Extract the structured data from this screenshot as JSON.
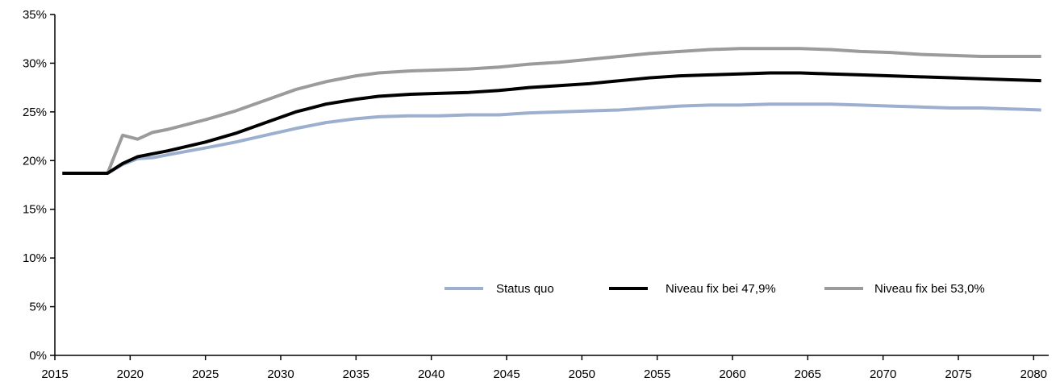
{
  "chart_data": {
    "type": "line",
    "title": "",
    "xlabel": "",
    "ylabel": "",
    "xlim": [
      2015,
      2081
    ],
    "ylim": [
      0,
      0.35
    ],
    "x_ticks": [
      2015,
      2020,
      2025,
      2030,
      2035,
      2040,
      2045,
      2050,
      2055,
      2060,
      2065,
      2070,
      2075,
      2080
    ],
    "x_tick_labels": [
      "2015",
      "2020",
      "2025",
      "2030",
      "2035",
      "2040",
      "2045",
      "2050",
      "2055",
      "2060",
      "2065",
      "2070",
      "2075",
      "2080"
    ],
    "y_ticks": [
      0,
      0.05,
      0.1,
      0.15,
      0.2,
      0.25,
      0.3,
      0.35
    ],
    "y_tick_labels": [
      "0%",
      "5%",
      "10%",
      "15%",
      "20%",
      "25%",
      "30%",
      "35%"
    ],
    "grid": false,
    "legend_position": "lower-right",
    "series": [
      {
        "name": "Status quo",
        "color": "#9DAFCF",
        "x": [
          2015.5,
          2018.5,
          2019.5,
          2020.5,
          2021.5,
          2022.5,
          2025,
          2027,
          2029,
          2031,
          2033,
          2035,
          2036.5,
          2038.5,
          2040.5,
          2042.5,
          2044.5,
          2046.5,
          2048.5,
          2050.5,
          2052.5,
          2054.5,
          2056.5,
          2058.5,
          2060.5,
          2062.5,
          2064.5,
          2066.5,
          2068.5,
          2070.5,
          2072.5,
          2074.5,
          2076.5,
          2078.5,
          2080.5
        ],
        "values": [
          0.187,
          0.187,
          0.196,
          0.202,
          0.203,
          0.206,
          0.213,
          0.219,
          0.226,
          0.233,
          0.239,
          0.243,
          0.245,
          0.246,
          0.246,
          0.247,
          0.247,
          0.249,
          0.25,
          0.251,
          0.252,
          0.254,
          0.256,
          0.257,
          0.257,
          0.258,
          0.258,
          0.258,
          0.257,
          0.256,
          0.255,
          0.254,
          0.254,
          0.253,
          0.252
        ]
      },
      {
        "name": "Niveau fix bei 47,9%",
        "color": "#000000",
        "x": [
          2015.5,
          2018.5,
          2019.5,
          2020.5,
          2021.5,
          2022.5,
          2025,
          2027,
          2029,
          2031,
          2033,
          2035,
          2036.5,
          2038.5,
          2040.5,
          2042.5,
          2044.5,
          2046.5,
          2048.5,
          2050.5,
          2052.5,
          2054.5,
          2056.5,
          2058.5,
          2060.5,
          2062.5,
          2064.5,
          2066.5,
          2068.5,
          2070.5,
          2072.5,
          2074.5,
          2076.5,
          2078.5,
          2080.5
        ],
        "values": [
          0.187,
          0.187,
          0.197,
          0.204,
          0.207,
          0.21,
          0.219,
          0.228,
          0.239,
          0.25,
          0.258,
          0.263,
          0.266,
          0.268,
          0.269,
          0.27,
          0.272,
          0.275,
          0.277,
          0.279,
          0.282,
          0.285,
          0.287,
          0.288,
          0.289,
          0.29,
          0.29,
          0.289,
          0.288,
          0.287,
          0.286,
          0.285,
          0.284,
          0.283,
          0.282
        ]
      },
      {
        "name": "Niveau fix bei 53,0%",
        "color": "#9B9B9B",
        "x": [
          2015.5,
          2018.5,
          2019.5,
          2020.5,
          2021.5,
          2022.5,
          2025,
          2027,
          2029,
          2031,
          2033,
          2035,
          2036.5,
          2038.5,
          2040.5,
          2042.5,
          2044.5,
          2046.5,
          2048.5,
          2050.5,
          2052.5,
          2054.5,
          2056.5,
          2058.5,
          2060.5,
          2062.5,
          2064.5,
          2066.5,
          2068.5,
          2070.5,
          2072.5,
          2074.5,
          2076.5,
          2078.5,
          2080.5
        ],
        "values": [
          0.187,
          0.187,
          0.226,
          0.222,
          0.229,
          0.232,
          0.242,
          0.251,
          0.262,
          0.273,
          0.281,
          0.287,
          0.29,
          0.292,
          0.293,
          0.294,
          0.296,
          0.299,
          0.301,
          0.304,
          0.307,
          0.31,
          0.312,
          0.314,
          0.315,
          0.315,
          0.315,
          0.314,
          0.312,
          0.311,
          0.309,
          0.308,
          0.307,
          0.307,
          0.307
        ]
      }
    ]
  }
}
